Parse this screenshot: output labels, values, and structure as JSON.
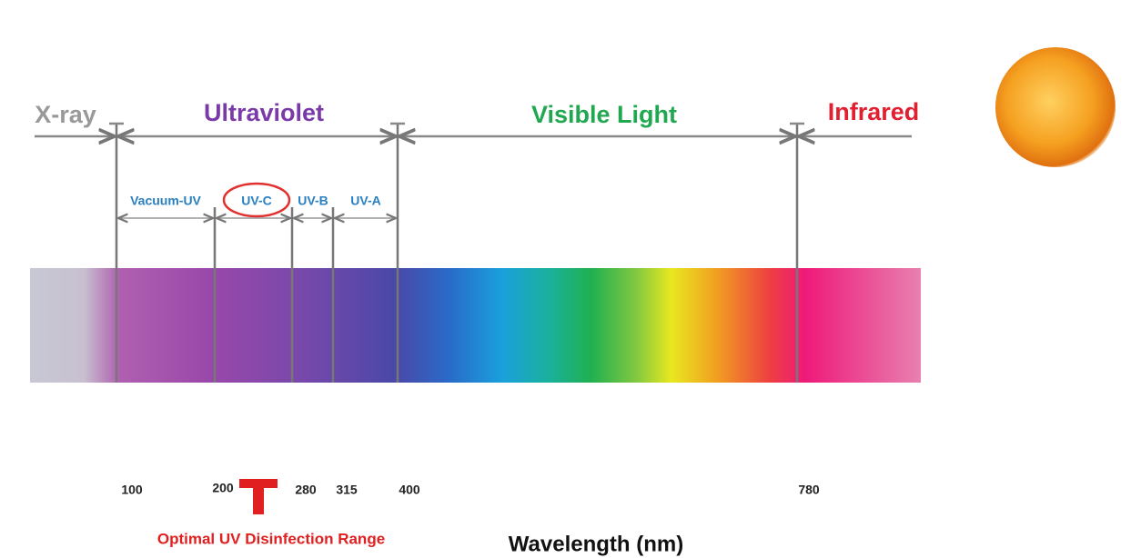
{
  "regions": [
    "X-ray",
    "Ultraviolet",
    "Visible Light",
    "Infrared"
  ],
  "subbands": [
    "Vacuum-UV",
    "UV-C",
    "UV-B",
    "UV-A"
  ],
  "wavelength_labels": [
    "100",
    "200",
    "280",
    "315",
    "400",
    "780"
  ],
  "caption": "Optimal UV Disinfection Range",
  "axis_label": "Wavelength (nm)"
}
